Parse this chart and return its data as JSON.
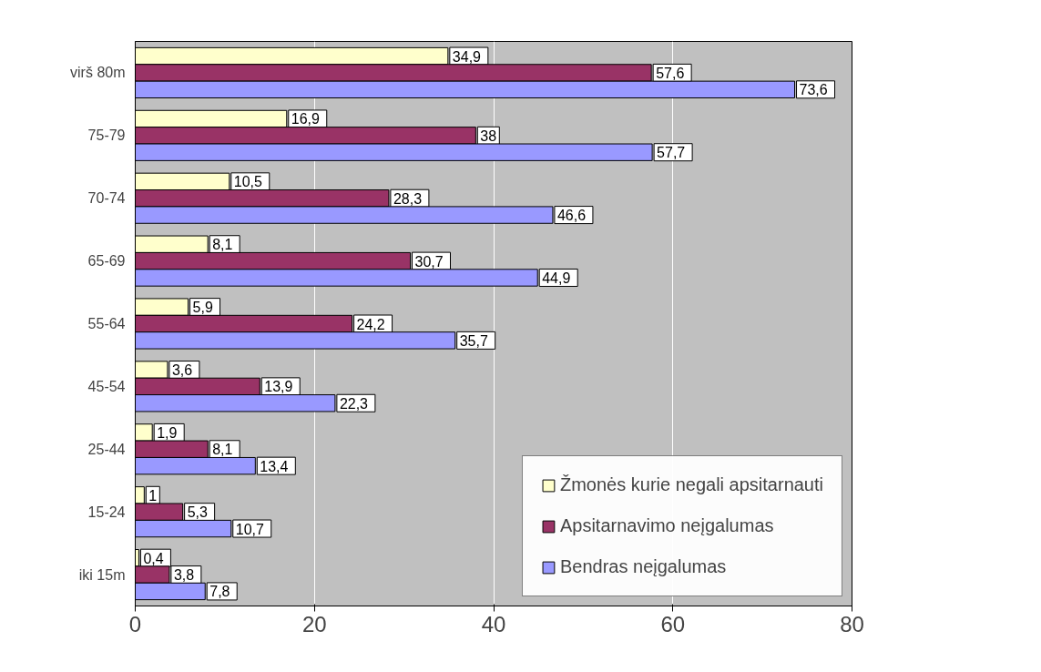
{
  "chart_data": {
    "type": "bar",
    "orientation": "horizontal",
    "categories": [
      "virš 80m",
      "75-79",
      "70-74",
      "65-69",
      "55-64",
      "45-54",
      "25-44",
      "15-24",
      "iki 15m"
    ],
    "series": [
      {
        "name": "Žmonės kurie negali apsitarnauti",
        "color": "#ffffcc",
        "values": [
          34.9,
          16.9,
          10.5,
          8.1,
          5.9,
          3.6,
          1.9,
          1,
          0.4
        ],
        "value_labels": [
          "34,9",
          "16,9",
          "10,5",
          "8,1",
          "5,9",
          "3,6",
          "1,9",
          "1",
          "0,4"
        ]
      },
      {
        "name": "Apsitarnavimo neįgalumas",
        "color": "#993366",
        "values": [
          57.6,
          38,
          28.3,
          30.7,
          24.2,
          13.9,
          8.1,
          5.3,
          3.8
        ],
        "value_labels": [
          "57,6",
          "38",
          "28,3",
          "30,7",
          "24,2",
          "13,9",
          "8,1",
          "5,3",
          "3,8"
        ]
      },
      {
        "name": "Bendras neįgalumas",
        "color": "#9999ff",
        "values": [
          73.6,
          57.7,
          46.6,
          44.9,
          35.7,
          22.3,
          13.4,
          10.7,
          7.8
        ],
        "value_labels": [
          "73,6",
          "57,7",
          "46,6",
          "44,9",
          "35,7",
          "22,3",
          "13,4",
          "10,7",
          "7,8"
        ]
      }
    ],
    "xlim": [
      0,
      80
    ],
    "xticks": [
      0,
      20,
      40,
      60,
      80
    ],
    "grid": "x",
    "legend": "bottom right"
  }
}
